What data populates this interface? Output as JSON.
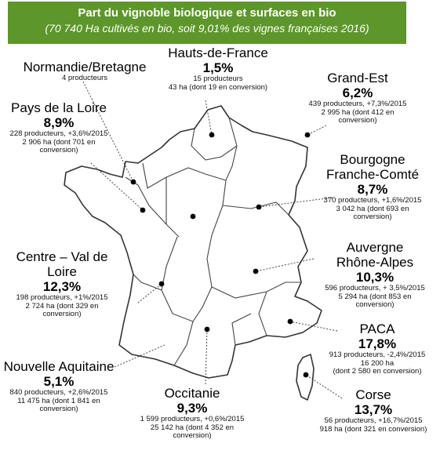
{
  "header": {
    "title": "Part du vignoble biologique et surfaces en bio",
    "subtitle": "(70 740 Ha cultivés en bio, soit 9,01% des vignes françaises 2016)"
  },
  "regions": {
    "normandie": {
      "name": "Normandie/Bretagne",
      "producers": "4 producteurs"
    },
    "hdf": {
      "name": "Hauts-de-France",
      "pct": "1,5%",
      "producers": "15 producteurs",
      "surface": "43 ha (dont 19 en conversion)"
    },
    "grand_est": {
      "name": "Grand-Est",
      "pct": "6,2%",
      "producers": "439 producteurs, +7,3%/2015",
      "surface_1": "2 995 ha (dont 412 en",
      "surface_2": "conversion)"
    },
    "pays_loire": {
      "name": "Pays de la Loire",
      "pct": "8,9%",
      "producers": "228 producteurs, +3,6%/2015",
      "surface_1": "2 906 ha (dont 701 en",
      "surface_2": "conversion)"
    },
    "bfc": {
      "name_1": "Bourgogne",
      "name_2": "Franche-Comté",
      "pct": "8,7%",
      "producers": "370 producteurs, +1,6%/2015",
      "surface_1": "3 042 ha (dont 693 en",
      "surface_2": "conversion)"
    },
    "cvl": {
      "name_1": "Centre – Val de",
      "name_2": "Loire",
      "pct": "12,3%",
      "producers": "198 producteurs, +1%/2015",
      "surface_1": "2 724 ha (dont 329 en",
      "surface_2": "conversion)"
    },
    "ara": {
      "name_1": "Auvergne",
      "name_2": "Rhône-Alpes",
      "pct": "10,3%",
      "producers": "596 producteurs, + 3,5%/2015",
      "surface_1": "5 294 ha (dont 853 en",
      "surface_2": "conversion)"
    },
    "paca": {
      "name": "PACA",
      "pct": "17,8%",
      "producers": "913 producteurs, -2,4%/2015",
      "surface_1": "16 200 ha",
      "surface_2": "(dont 2 580 en conversion)"
    },
    "na": {
      "name": "Nouvelle Aquitaine",
      "pct": "5,1%",
      "producers": "840 producteurs, +2,6%/2015",
      "surface_1": "11 475 ha (dont 1 841 en",
      "surface_2": "conversion)"
    },
    "occitanie": {
      "name": "Occitanie",
      "pct": "9,3%",
      "producers": "1 599 producteurs, +0,6%/2015",
      "surface_1": "25 142 ha (dont 4 352 en",
      "surface_2": "conversion)"
    },
    "corse": {
      "name": "Corse",
      "pct": "13,7%",
      "producers": "56 producteurs, +16,7%/2015",
      "surface": "918 ha (dont 321 en conversion)"
    }
  }
}
